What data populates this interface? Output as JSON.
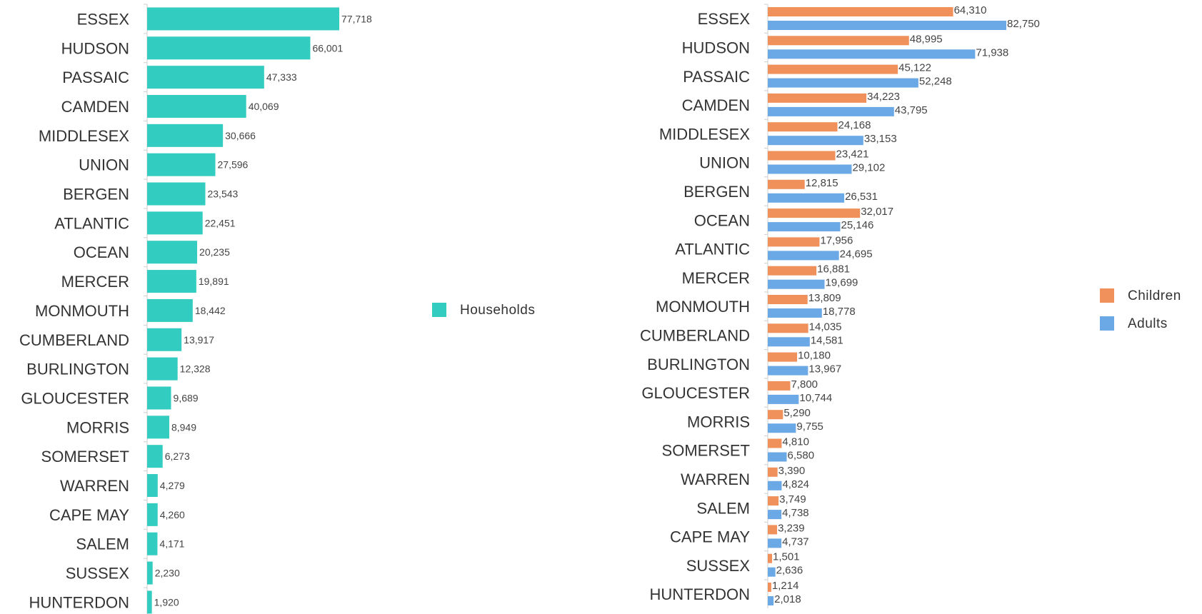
{
  "chart_data": [
    {
      "type": "bar",
      "orientation": "horizontal",
      "categories": [
        "ESSEX",
        "HUDSON",
        "PASSAIC",
        "CAMDEN",
        "MIDDLESEX",
        "UNION",
        "BERGEN",
        "ATLANTIC",
        "OCEAN",
        "MERCER",
        "MONMOUTH",
        "CUMBERLAND",
        "BURLINGTON",
        "GLOUCESTER",
        "MORRIS",
        "SOMERSET",
        "WARREN",
        "CAPE MAY",
        "SALEM",
        "SUSSEX",
        "HUNTERDON"
      ],
      "series": [
        {
          "name": "Households",
          "color": "#33ccc0",
          "values": [
            77718,
            66001,
            47333,
            40069,
            30666,
            27596,
            23543,
            22451,
            20235,
            19891,
            18442,
            13917,
            12328,
            9689,
            8949,
            6273,
            4279,
            4260,
            4171,
            2230,
            1920
          ]
        }
      ],
      "grid": false,
      "legend": "right"
    },
    {
      "type": "bar",
      "orientation": "horizontal",
      "categories": [
        "ESSEX",
        "HUDSON",
        "PASSAIC",
        "CAMDEN",
        "MIDDLESEX",
        "UNION",
        "BERGEN",
        "OCEAN",
        "ATLANTIC",
        "MERCER",
        "MONMOUTH",
        "CUMBERLAND",
        "BURLINGTON",
        "GLOUCESTER",
        "MORRIS",
        "SOMERSET",
        "WARREN",
        "SALEM",
        "CAPE MAY",
        "SUSSEX",
        "HUNTERDON"
      ],
      "series": [
        {
          "name": "Children",
          "color": "#f0905a",
          "values": [
            64310,
            48995,
            45122,
            34223,
            24168,
            23421,
            12815,
            32017,
            17956,
            16881,
            13809,
            14035,
            10180,
            7800,
            5290,
            4810,
            3390,
            3749,
            3239,
            1501,
            1214
          ]
        },
        {
          "name": "Adults",
          "color": "#6aa8e6",
          "values": [
            82750,
            71938,
            52248,
            43795,
            33153,
            29102,
            26531,
            25146,
            24695,
            19699,
            18778,
            14581,
            13967,
            10744,
            9755,
            6580,
            4824,
            4738,
            4737,
            2636,
            2018
          ]
        }
      ],
      "grid": false,
      "legend": "right"
    }
  ]
}
